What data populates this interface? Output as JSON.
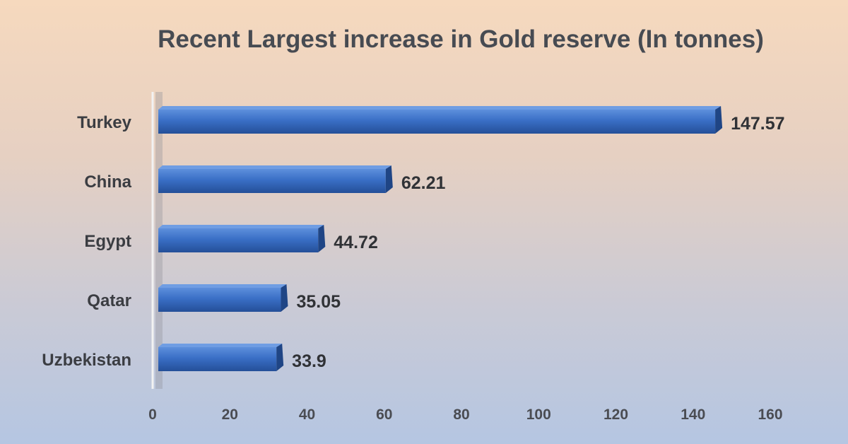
{
  "chart_data": {
    "type": "bar",
    "orientation": "horizontal",
    "title": "Recent Largest increase in Gold reserve (In tonnes)",
    "categories": [
      "Turkey",
      "China",
      "Egypt",
      "Qatar",
      "Uzbekistan"
    ],
    "values": [
      147.57,
      62.21,
      44.72,
      35.05,
      33.9
    ],
    "data_labels": [
      "147.57",
      "62.21",
      "44.72",
      "35.05",
      "33.9"
    ],
    "xlim": [
      0,
      160
    ],
    "xticks": [
      0,
      20,
      40,
      60,
      80,
      100,
      120,
      140,
      160
    ],
    "grid": false,
    "legend": "none",
    "colors": {
      "bar_top": "#5d8fdc",
      "bar_mid": "#3a6fc6",
      "bar_bottom": "#244f98",
      "bar_end": "#1f4585",
      "axis": "#f2f2f2"
    }
  }
}
